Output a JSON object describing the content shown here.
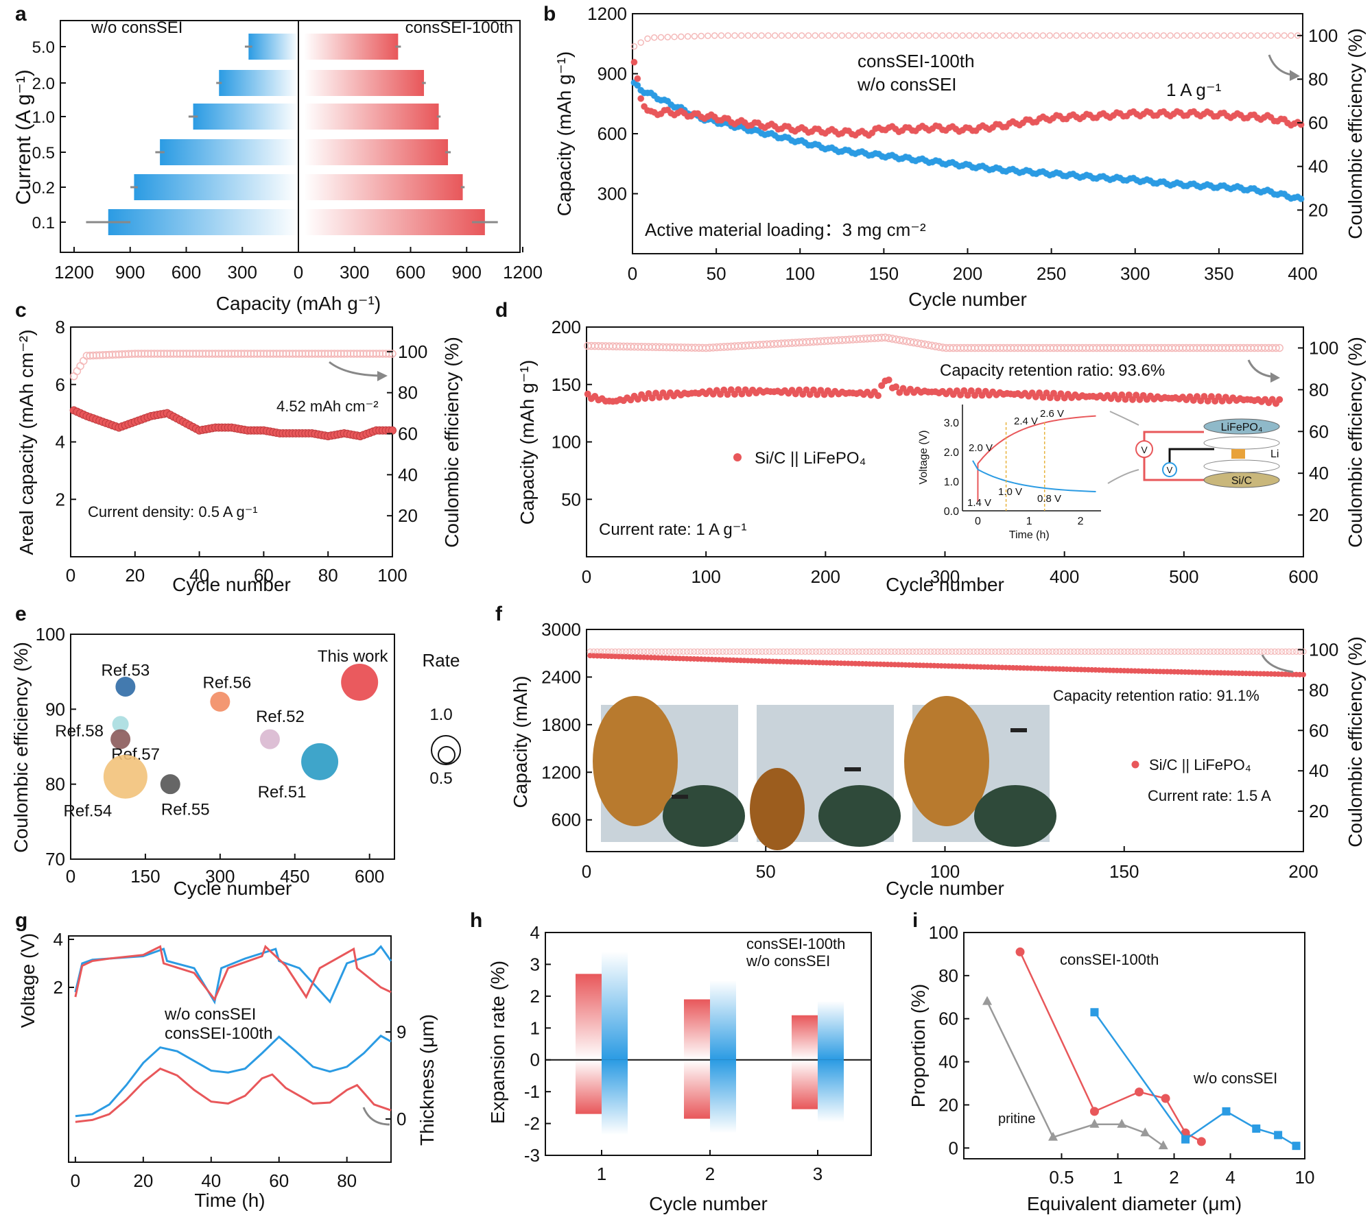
{
  "colors": {
    "red": "#e8575a",
    "blue": "#2b9be3",
    "gray": "#999999",
    "light_red": "#f4b8b8"
  },
  "chart_data": [
    {
      "panel": "a",
      "type": "bar",
      "categories": [
        "5.0",
        "2.0",
        "1.0",
        "0.5",
        "0.2",
        "0.1"
      ],
      "series": [
        {
          "name": "w/o consSEI",
          "values": [
            270,
            430,
            570,
            750,
            890,
            1030
          ],
          "errors": [
            20,
            15,
            25,
            25,
            20,
            120
          ]
        },
        {
          "name": "consSEI-100th",
          "values": [
            540,
            680,
            760,
            810,
            890,
            1010
          ],
          "errors": [
            15,
            10,
            10,
            15,
            10,
            70
          ]
        }
      ],
      "xlabel": "Capacity (mAh g⁻¹)",
      "ylabel": "Current  (A g⁻¹)",
      "xticks": [
        "1200",
        "900",
        "600",
        "300",
        "0",
        "300",
        "600",
        "900",
        "1200"
      ]
    },
    {
      "panel": "b",
      "type": "scatter",
      "series": [
        {
          "name": "consSEI-100th",
          "x": [
            1,
            5,
            10,
            20,
            30,
            40,
            50,
            60,
            80,
            100,
            120,
            140,
            150,
            160,
            180,
            200,
            220,
            250,
            280,
            300,
            320,
            340,
            360,
            380,
            390,
            400
          ],
          "y": [
            950,
            780,
            700,
            710,
            700,
            690,
            680,
            660,
            640,
            620,
            610,
            600,
            630,
            620,
            630,
            620,
            640,
            680,
            690,
            700,
            700,
            700,
            690,
            680,
            660,
            640
          ]
        },
        {
          "name": "w/o consSEI",
          "x": [
            1,
            5,
            10,
            20,
            30,
            40,
            50,
            60,
            80,
            100,
            120,
            140,
            160,
            180,
            200,
            220,
            250,
            280,
            300,
            320,
            340,
            360,
            380,
            390,
            400
          ],
          "y": [
            850,
            820,
            800,
            760,
            720,
            680,
            660,
            640,
            600,
            560,
            520,
            500,
            480,
            460,
            440,
            420,
            400,
            380,
            370,
            350,
            340,
            330,
            310,
            290,
            270
          ]
        },
        {
          "name": "CE",
          "x": [
            1,
            10,
            50,
            100,
            200,
            300,
            400
          ],
          "y": [
            95,
            99,
            100,
            100,
            100,
            100,
            100
          ]
        }
      ],
      "xlabel": "Cycle number",
      "ylabel": "Capacity (mAh g⁻¹)",
      "y2label": "Coulombic efficiency (%)",
      "xlim": [
        0,
        400
      ],
      "ylim": [
        0,
        1200
      ],
      "y2lim": [
        0,
        110
      ],
      "xticks": [
        "0",
        "50",
        "100",
        "150",
        "200",
        "250",
        "300",
        "350",
        "400"
      ],
      "yticks": [
        "300",
        "600",
        "900",
        "1200"
      ],
      "y2ticks": [
        "20",
        "40",
        "60",
        "80",
        "100"
      ],
      "annotations": [
        "1 A g⁻¹",
        "Active material loading：3 mg cm⁻²"
      ]
    },
    {
      "panel": "c",
      "type": "scatter",
      "series": [
        {
          "name": "Areal capacity",
          "x": [
            1,
            5,
            10,
            15,
            20,
            25,
            30,
            35,
            40,
            45,
            50,
            55,
            60,
            65,
            70,
            75,
            80,
            85,
            90,
            95,
            100
          ],
          "y": [
            5.1,
            4.9,
            4.7,
            4.5,
            4.7,
            4.9,
            5.0,
            4.7,
            4.4,
            4.5,
            4.5,
            4.4,
            4.4,
            4.3,
            4.3,
            4.3,
            4.2,
            4.3,
            4.2,
            4.4,
            4.4
          ]
        },
        {
          "name": "CE",
          "x": [
            1,
            5,
            20,
            50,
            100
          ],
          "y": [
            88,
            98,
            99,
            99,
            99
          ]
        }
      ],
      "xlabel": "Cycle number",
      "ylabel": "Areal capacity (mAh cm⁻²)",
      "y2label": "Coulombic efficiency (%)",
      "xlim": [
        0,
        100
      ],
      "ylim": [
        0,
        8
      ],
      "y2lim": [
        0,
        112
      ],
      "xticks": [
        "0",
        "20",
        "40",
        "60",
        "80",
        "100"
      ],
      "yticks": [
        "2",
        "4",
        "6",
        "8"
      ],
      "y2ticks": [
        "20",
        "40",
        "60",
        "80",
        "100"
      ],
      "annotations": [
        "4.52 mAh cm⁻²",
        "Current density: 0.5 A g⁻¹"
      ]
    },
    {
      "panel": "d",
      "type": "scatter",
      "series": [
        {
          "name": "Si/C || LiFePO₄",
          "x": [
            1,
            20,
            50,
            100,
            150,
            200,
            245,
            250,
            260,
            300,
            350,
            400,
            450,
            500,
            550,
            580
          ],
          "y": [
            140,
            135,
            140,
            143,
            144,
            143,
            142,
            155,
            145,
            143,
            142,
            140,
            139,
            138,
            137,
            135
          ]
        },
        {
          "name": "CE",
          "x": [
            1,
            100,
            250,
            300,
            580
          ],
          "y": [
            101,
            100,
            105,
            100,
            100
          ]
        }
      ],
      "xlabel": "Cycle number",
      "ylabel": "Capacity (mAh g⁻¹)",
      "y2label": "Coulombic efficiency (%)",
      "xlim": [
        0,
        600
      ],
      "ylim": [
        0,
        200
      ],
      "y2lim": [
        0,
        110
      ],
      "xticks": [
        "0",
        "100",
        "200",
        "300",
        "400",
        "500",
        "600"
      ],
      "yticks": [
        "50",
        "100",
        "150",
        "200"
      ],
      "y2ticks": [
        "20",
        "40",
        "60",
        "80",
        "100"
      ],
      "annotations": [
        "Capacity retention ratio:  93.6%",
        "Current rate: 1 A g⁻¹"
      ],
      "inset": {
        "xlabel": "Time (h)",
        "ylabel": "Voltage (V)",
        "xticks": [
          "0",
          "1",
          "2"
        ],
        "yticks": [
          "0.0",
          "1.0",
          "2.0",
          "3.0"
        ],
        "labels": [
          "2.0 V",
          "2.4 V",
          "2.6 V",
          "1.4 V",
          "1.0 V",
          "0.8 V"
        ],
        "diagram_labels": [
          "LiFePO₄",
          "Li",
          "Si/C",
          "V",
          "V"
        ]
      }
    },
    {
      "panel": "e",
      "type": "scatter",
      "points": [
        {
          "label": "Ref.53",
          "x": 110,
          "y": 93,
          "rate": 0.5,
          "color": "#2f6ba6"
        },
        {
          "label": "Ref.58",
          "x": 100,
          "y": 88,
          "rate": 0.4,
          "color": "#a8dde0"
        },
        {
          "label": "Ref.57",
          "x": 100,
          "y": 86,
          "rate": 0.5,
          "color": "#8b5a5a"
        },
        {
          "label": "Ref.54",
          "x": 110,
          "y": 81,
          "rate": 1.2,
          "color": "#f2c27a"
        },
        {
          "label": "Ref.55",
          "x": 200,
          "y": 80,
          "rate": 0.5,
          "color": "#555555"
        },
        {
          "label": "Ref.56",
          "x": 300,
          "y": 91,
          "rate": 0.5,
          "color": "#f28c63"
        },
        {
          "label": "Ref.52",
          "x": 400,
          "y": 86,
          "rate": 0.5,
          "color": "#d9b8d0"
        },
        {
          "label": "Ref.51",
          "x": 500,
          "y": 83,
          "rate": 1.0,
          "color": "#2a9bc4"
        },
        {
          "label": "This work",
          "x": 580,
          "y": 93.6,
          "rate": 1.0,
          "color": "#e8484d"
        }
      ],
      "xlabel": "Cycle number",
      "ylabel": "Coulombic efficiency (%)",
      "xlim": [
        0,
        650
      ],
      "ylim": [
        70,
        100
      ],
      "xticks": [
        "0",
        "150",
        "300",
        "450",
        "600"
      ],
      "yticks": [
        "70",
        "80",
        "90",
        "100"
      ],
      "size_legend": {
        "title": "Rate",
        "values": [
          "1.0",
          "0.5"
        ]
      }
    },
    {
      "panel": "f",
      "type": "scatter",
      "series": [
        {
          "name": "Si/C || LiFePO₄",
          "x": [
            1,
            50,
            100,
            150,
            200
          ],
          "y": [
            2670,
            2600,
            2540,
            2480,
            2430
          ]
        },
        {
          "name": "CE",
          "x": [
            1,
            50,
            100,
            150,
            200
          ],
          "y": [
            99,
            99,
            99,
            99,
            99
          ]
        }
      ],
      "xlabel": "Cycle number",
      "ylabel": "Capacity (mAh)",
      "y2label": "Coulombic efficiency (%)",
      "xlim": [
        0,
        200
      ],
      "ylim": [
        200,
        3000
      ],
      "y2lim": [
        0,
        110
      ],
      "xticks": [
        "0",
        "50",
        "100",
        "150",
        "200"
      ],
      "yticks": [
        "600",
        "1200",
        "1800",
        "2400",
        "3000"
      ],
      "y2ticks": [
        "20",
        "40",
        "60",
        "80",
        "100"
      ],
      "annotations": [
        "Capacity retention ratio:  91.1%",
        "Current rate: 1.5 A"
      ]
    },
    {
      "panel": "g",
      "type": "line",
      "series": [
        {
          "name": "w/o consSEI voltage",
          "x": [
            0,
            2,
            5,
            10,
            20,
            26,
            27,
            35,
            41,
            43,
            50,
            59,
            60,
            66,
            75,
            80,
            88,
            90,
            93
          ],
          "y": [
            1.8,
            3.0,
            3.15,
            3.2,
            3.3,
            3.6,
            3.1,
            2.8,
            1.4,
            2.8,
            3.2,
            3.6,
            3.1,
            2.8,
            1.4,
            3.0,
            3.4,
            3.7,
            3.1
          ]
        },
        {
          "name": "consSEI-100th voltage",
          "x": [
            0,
            2,
            5,
            10,
            20,
            25,
            26,
            35,
            41,
            45,
            55,
            56,
            62,
            68,
            72,
            82,
            83,
            90,
            93
          ],
          "y": [
            1.6,
            2.9,
            3.1,
            3.2,
            3.35,
            3.7,
            3.0,
            2.6,
            1.5,
            2.8,
            3.3,
            3.7,
            2.9,
            1.6,
            2.8,
            3.6,
            2.8,
            2.0,
            1.8
          ]
        },
        {
          "name": "w/o consSEI",
          "x": [
            0,
            5,
            10,
            15,
            20,
            25,
            30,
            35,
            40,
            45,
            50,
            55,
            60,
            65,
            70,
            75,
            80,
            85,
            90,
            93
          ],
          "y": [
            0.3,
            0.5,
            1.5,
            3.5,
            5.8,
            7.4,
            7.0,
            6.0,
            5.0,
            4.8,
            5.2,
            6.8,
            8.5,
            7.0,
            5.4,
            4.9,
            5.4,
            6.8,
            8.6,
            8.0
          ]
        },
        {
          "name": "consSEI-100th",
          "x": [
            0,
            5,
            10,
            15,
            20,
            25,
            30,
            35,
            40,
            45,
            50,
            55,
            58,
            62,
            70,
            75,
            80,
            83,
            88,
            93
          ],
          "y": [
            -0.3,
            -0.1,
            0.5,
            2.0,
            3.8,
            5.2,
            4.5,
            3.0,
            1.8,
            1.6,
            2.4,
            4.2,
            4.6,
            3.2,
            1.6,
            1.7,
            3.0,
            3.5,
            1.5,
            0.9
          ]
        }
      ],
      "xlabel": "Time (h)",
      "ylabel": "Voltage (V)",
      "y2label": "Thickness  (μm)",
      "xlim": [
        -2,
        93
      ],
      "xticks": [
        "0",
        "20",
        "40",
        "60",
        "80"
      ],
      "yticks": [
        "2",
        "4"
      ],
      "y2ticks": [
        "0",
        "9"
      ]
    },
    {
      "panel": "h",
      "type": "bar",
      "categories": [
        "1",
        "2",
        "3"
      ],
      "series": [
        {
          "name": "consSEI-100th",
          "positive": [
            2.7,
            1.9,
            1.4
          ],
          "negative": [
            -1.7,
            -1.85,
            -1.55
          ]
        },
        {
          "name": "w/o consSEI",
          "positive": [
            3.4,
            2.5,
            1.85
          ],
          "negative": [
            -2.35,
            -2.3,
            -1.95
          ]
        }
      ],
      "xlabel": "Cycle number",
      "ylabel": "Expansion rate (%)",
      "ylim": [
        -3,
        4
      ],
      "yticks": [
        "-3",
        "-2",
        "-1",
        "0",
        "1",
        "2",
        "3",
        "4"
      ]
    },
    {
      "panel": "i",
      "type": "line",
      "series": [
        {
          "name": "consSEI-100th",
          "x": [
            0.3,
            0.75,
            1.3,
            1.8,
            2.3,
            2.8
          ],
          "y": [
            91,
            17,
            26,
            23,
            7,
            3
          ]
        },
        {
          "name": "w/o consSEI",
          "x": [
            0.75,
            2.3,
            3.8,
            5.5,
            7.2,
            9
          ],
          "y": [
            63,
            4,
            17,
            9,
            6,
            1
          ]
        },
        {
          "name": "pritine",
          "x": [
            0.2,
            0.45,
            0.75,
            1.05,
            1.4,
            1.75
          ],
          "y": [
            68,
            5,
            11,
            11,
            7,
            1
          ]
        }
      ],
      "xlabel": "Equivalent diameter (μm)",
      "ylabel": "Proportion (%)",
      "xlim": [
        0,
        10
      ],
      "ylim": [
        0,
        100
      ],
      "xticks": [
        "0.5",
        "1",
        "2",
        "4",
        "10"
      ],
      "yticks": [
        "0",
        "20",
        "40",
        "60",
        "80",
        "100"
      ]
    }
  ]
}
